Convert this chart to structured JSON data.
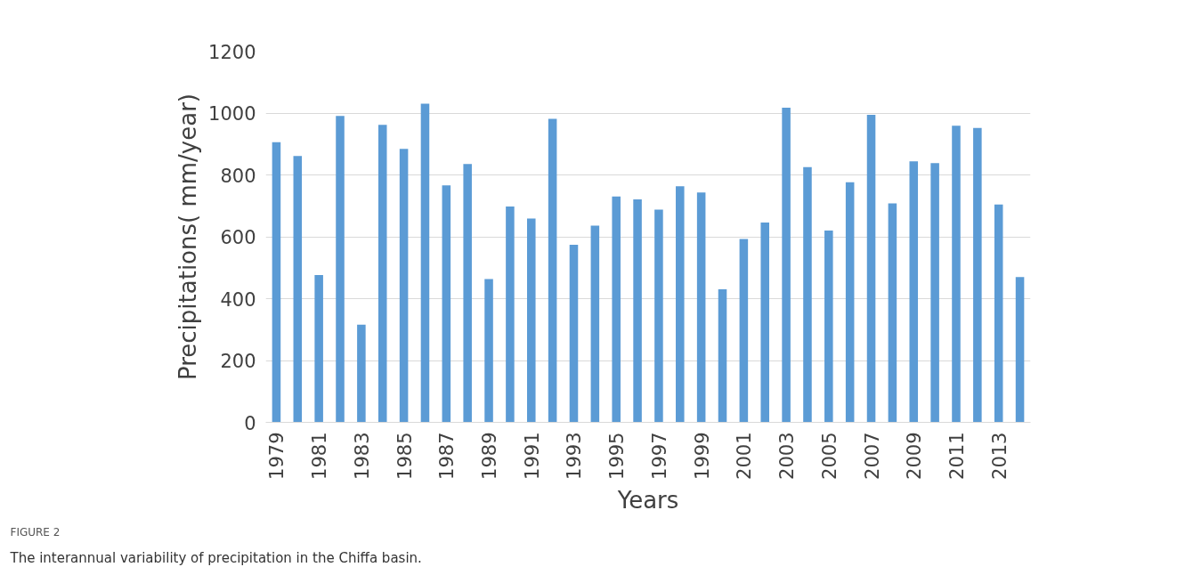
{
  "chart_data": {
    "type": "bar",
    "categories": [
      "1979",
      null,
      "1981",
      null,
      "1983",
      null,
      "1985",
      null,
      "1987",
      null,
      "1989",
      null,
      "1991",
      null,
      "1993",
      null,
      "1995",
      null,
      "1997",
      null,
      "1999",
      null,
      "2001",
      null,
      "2003",
      null,
      "2005",
      null,
      "2007",
      null,
      "2009",
      null,
      "2011",
      null,
      "2013",
      null
    ],
    "values": [
      906,
      861,
      476,
      991,
      316,
      962,
      884,
      1030,
      766,
      835,
      463,
      698,
      659,
      981,
      574,
      636,
      730,
      721,
      688,
      763,
      743,
      430,
      593,
      646,
      1017,
      825,
      620,
      776,
      994,
      708,
      844,
      838,
      959,
      952,
      704,
      470
    ],
    "color": "#5b9bd5",
    "xlabel": "Years",
    "ylabel": "Precipitations( mm/year)",
    "ylim": [
      0,
      1200
    ],
    "yticks": [
      0,
      200,
      400,
      600,
      800,
      1000,
      1200
    ],
    "grid": "y",
    "annotations": [
      "FIGURE 2",
      "The interannual variability of precipitation in the Chiffa basin."
    ]
  }
}
